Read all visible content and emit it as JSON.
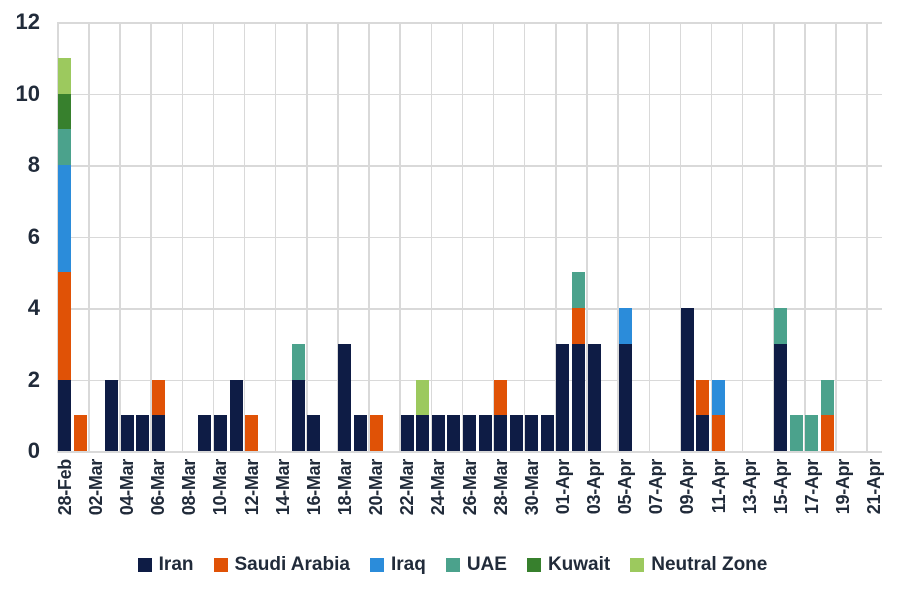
{
  "chart_data": {
    "type": "bar",
    "stacked": true,
    "title": "",
    "background": "#ffffff",
    "text_color": "#212b3a",
    "categories": [
      "28-Feb",
      "01-Mar",
      "02-Mar",
      "03-Mar",
      "04-Mar",
      "05-Mar",
      "06-Mar",
      "07-Mar",
      "08-Mar",
      "09-Mar",
      "10-Mar",
      "11-Mar",
      "12-Mar",
      "13-Mar",
      "14-Mar",
      "15-Mar",
      "16-Mar",
      "17-Mar",
      "18-Mar",
      "19-Mar",
      "20-Mar",
      "21-Mar",
      "22-Mar",
      "23-Mar",
      "24-Mar",
      "25-Mar",
      "26-Mar",
      "27-Mar",
      "28-Mar",
      "29-Mar",
      "30-Mar",
      "31-Mar",
      "01-Apr",
      "02-Apr",
      "03-Apr",
      "04-Apr",
      "05-Apr",
      "06-Apr",
      "07-Apr",
      "08-Apr",
      "09-Apr",
      "10-Apr",
      "11-Apr",
      "12-Apr",
      "13-Apr",
      "14-Apr",
      "15-Apr",
      "16-Apr",
      "17-Apr",
      "18-Apr",
      "19-Apr",
      "20-Apr",
      "21-Apr"
    ],
    "x_label_every": 2,
    "x_tick_labels_shown": [
      "28-Feb",
      "02-Mar",
      "04-Mar",
      "06-Mar",
      "08-Mar",
      "10-Mar",
      "12-Mar",
      "14-Mar",
      "16-Mar",
      "18-Mar",
      "20-Mar",
      "22-Mar",
      "24-Mar",
      "26-Mar",
      "28-Mar",
      "30-Mar",
      "01-Apr",
      "03-Apr",
      "05-Apr",
      "07-Apr",
      "09-Apr",
      "11-Apr",
      "13-Apr",
      "15-Apr",
      "17-Apr",
      "19-Apr",
      "21-Apr"
    ],
    "series": [
      {
        "name": "Iran",
        "color": "#0e1c45",
        "values": [
          2,
          0,
          0,
          2,
          1,
          1,
          1,
          0,
          0,
          1,
          1,
          2,
          0,
          0,
          0,
          2,
          1,
          0,
          3,
          1,
          0,
          0,
          1,
          1,
          1,
          1,
          1,
          1,
          1,
          1,
          1,
          1,
          3,
          3,
          3,
          0,
          3,
          0,
          0,
          0,
          4,
          1,
          0,
          0,
          0,
          0,
          3,
          0,
          0,
          0,
          0,
          0,
          0
        ]
      },
      {
        "name": "Saudi Arabia",
        "color": "#e05206",
        "values": [
          3,
          1,
          0,
          0,
          0,
          0,
          1,
          0,
          0,
          0,
          0,
          0,
          1,
          0,
          0,
          0,
          0,
          0,
          0,
          0,
          1,
          0,
          0,
          0,
          0,
          0,
          0,
          0,
          1,
          0,
          0,
          0,
          0,
          1,
          0,
          0,
          0,
          0,
          0,
          0,
          0,
          1,
          1,
          0,
          0,
          0,
          0,
          0,
          0,
          1,
          0,
          0,
          0
        ]
      },
      {
        "name": "Iraq",
        "color": "#2b8cda",
        "values": [
          3,
          0,
          0,
          0,
          0,
          0,
          0,
          0,
          0,
          0,
          0,
          0,
          0,
          0,
          0,
          0,
          0,
          0,
          0,
          0,
          0,
          0,
          0,
          0,
          0,
          0,
          0,
          0,
          0,
          0,
          0,
          0,
          0,
          0,
          0,
          0,
          1,
          0,
          0,
          0,
          0,
          0,
          1,
          0,
          0,
          0,
          0,
          0,
          0,
          0,
          0,
          0,
          0
        ]
      },
      {
        "name": "UAE",
        "color": "#4ba28c",
        "values": [
          1,
          0,
          0,
          0,
          0,
          0,
          0,
          0,
          0,
          0,
          0,
          0,
          0,
          0,
          0,
          1,
          0,
          0,
          0,
          0,
          0,
          0,
          0,
          0,
          0,
          0,
          0,
          0,
          0,
          0,
          0,
          0,
          0,
          1,
          0,
          0,
          0,
          0,
          0,
          0,
          0,
          0,
          0,
          0,
          0,
          0,
          1,
          1,
          1,
          1,
          0,
          0,
          0
        ]
      },
      {
        "name": "Kuwait",
        "color": "#37802d",
        "values": [
          1,
          0,
          0,
          0,
          0,
          0,
          0,
          0,
          0,
          0,
          0,
          0,
          0,
          0,
          0,
          0,
          0,
          0,
          0,
          0,
          0,
          0,
          0,
          0,
          0,
          0,
          0,
          0,
          0,
          0,
          0,
          0,
          0,
          0,
          0,
          0,
          0,
          0,
          0,
          0,
          0,
          0,
          0,
          0,
          0,
          0,
          0,
          0,
          0,
          0,
          0,
          0,
          0
        ]
      },
      {
        "name": "Neutral Zone",
        "color": "#9cc95e",
        "values": [
          1,
          0,
          0,
          0,
          0,
          0,
          0,
          0,
          0,
          0,
          0,
          0,
          0,
          0,
          0,
          0,
          0,
          0,
          0,
          0,
          0,
          0,
          0,
          1,
          0,
          0,
          0,
          0,
          0,
          0,
          0,
          0,
          0,
          0,
          0,
          0,
          0,
          0,
          0,
          0,
          0,
          0,
          0,
          0,
          0,
          0,
          0,
          0,
          0,
          0,
          0,
          0,
          0
        ]
      }
    ],
    "y_axis": {
      "min": 0,
      "max": 12,
      "tick_step": 2,
      "ticks": [
        0,
        2,
        4,
        6,
        8,
        10,
        12
      ]
    },
    "grid": {
      "horizontal": true,
      "vertical": true,
      "vertical_every_categories": 2,
      "color": "#d9d9d9"
    },
    "legend": {
      "position": "bottom",
      "entries": [
        "Iran",
        "Saudi Arabia",
        "Iraq",
        "UAE",
        "Kuwait",
        "Neutral Zone"
      ]
    }
  }
}
